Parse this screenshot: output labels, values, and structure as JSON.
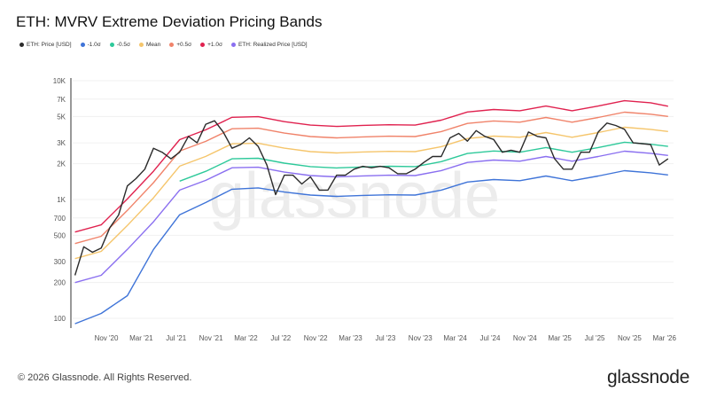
{
  "title": "ETH: MVRV Extreme Deviation Pricing Bands",
  "footer": "© 2026 Glassnode. All Rights Reserved.",
  "logo": "glassnode",
  "watermark": "glassnode",
  "chart_data": {
    "type": "line",
    "title": "ETH: MVRV Extreme Deviation Pricing Bands",
    "y_scale": "log",
    "ylim": [
      90,
      10000
    ],
    "grid": true,
    "legend_placement": "top-left",
    "y_ticks": [
      "100",
      "200",
      "300",
      "500",
      "700",
      "1K",
      "2K",
      "3K",
      "5K",
      "7K",
      "10K"
    ],
    "y_tick_values": [
      100,
      200,
      300,
      500,
      700,
      1000,
      2000,
      3000,
      5000,
      7000,
      10000
    ],
    "x_ticks": [
      "Nov '20",
      "Mar '21",
      "Jul '21",
      "Nov '21",
      "Mar '22",
      "Jul '22",
      "Nov '22",
      "Mar '23",
      "Jul '23",
      "Nov '23",
      "Mar '24",
      "Jul '24",
      "Nov '24",
      "Mar '25",
      "Jul '25",
      "Nov '25",
      "Mar '26"
    ],
    "x_tick_dates": [
      "2020-11",
      "2021-03",
      "2021-07",
      "2021-11",
      "2022-03",
      "2022-07",
      "2022-11",
      "2023-03",
      "2023-07",
      "2023-11",
      "2024-03",
      "2024-07",
      "2024-11",
      "2025-03",
      "2025-07",
      "2025-11",
      "2026-03"
    ],
    "price": {
      "name": "ETH: Price [USD]",
      "color": "#2b2b2b",
      "x": [
        "2020-07",
        "2020-08",
        "2020-09",
        "2020-10",
        "2020-11",
        "2020-12",
        "2021-01",
        "2021-02",
        "2021-03",
        "2021-04",
        "2021-05",
        "2021-06",
        "2021-07",
        "2021-08",
        "2021-09",
        "2021-10",
        "2021-11",
        "2021-12",
        "2022-01",
        "2022-02",
        "2022-03",
        "2022-04",
        "2022-05",
        "2022-06",
        "2022-07",
        "2022-08",
        "2022-09",
        "2022-10",
        "2022-11",
        "2022-12",
        "2023-01",
        "2023-02",
        "2023-03",
        "2023-04",
        "2023-05",
        "2023-06",
        "2023-07",
        "2023-08",
        "2023-09",
        "2023-10",
        "2023-11",
        "2023-12",
        "2024-01",
        "2024-02",
        "2024-03",
        "2024-04",
        "2024-05",
        "2024-06",
        "2024-07",
        "2024-08",
        "2024-09",
        "2024-10",
        "2024-11",
        "2024-12",
        "2025-01",
        "2025-02",
        "2025-03",
        "2025-04",
        "2025-05",
        "2025-06",
        "2025-07",
        "2025-08",
        "2025-09",
        "2025-10",
        "2025-11",
        "2025-12",
        "2026-01",
        "2026-02",
        "2026-03"
      ],
      "values": [
        230,
        400,
        360,
        390,
        580,
        740,
        1300,
        1500,
        1800,
        2700,
        2500,
        2200,
        2500,
        3400,
        3000,
        4300,
        4600,
        3700,
        2700,
        2900,
        3300,
        2800,
        1950,
        1100,
        1600,
        1600,
        1350,
        1550,
        1200,
        1200,
        1600,
        1600,
        1800,
        1900,
        1850,
        1900,
        1850,
        1650,
        1650,
        1800,
        2050,
        2300,
        2300,
        3300,
        3600,
        3100,
        3800,
        3400,
        3200,
        2500,
        2600,
        2500,
        3700,
        3400,
        3300,
        2200,
        1800,
        1800,
        2500,
        2500,
        3700,
        4400,
        4200,
        3900,
        3000,
        2950,
        2900,
        1950,
        2200
      ]
    },
    "bands_x": [
      "2020-07",
      "2020-10",
      "2021-01",
      "2021-04",
      "2021-07",
      "2021-10",
      "2022-01",
      "2022-04",
      "2022-07",
      "2022-10",
      "2023-01",
      "2023-04",
      "2023-07",
      "2023-10",
      "2024-01",
      "2024-04",
      "2024-07",
      "2024-10",
      "2025-01",
      "2025-04",
      "2025-07",
      "2025-10",
      "2026-01",
      "2026-03"
    ],
    "series": [
      {
        "name": "-1.0σ",
        "color": "#3f74d8",
        "values": [
          90,
          110,
          155,
          380,
          744,
          943,
          1221,
          1253,
          1156,
          1089,
          1062,
          1082,
          1096,
          1089,
          1199,
          1404,
          1473,
          1439,
          1576,
          1439,
          1576,
          1747,
          1678,
          1610
        ]
      },
      {
        "name": "-0.5σ",
        "color": "#2ec99a",
        "values": [
          null,
          null,
          null,
          null,
          1428,
          1726,
          2202,
          2225,
          2023,
          1892,
          1845,
          1880,
          1904,
          1892,
          2083,
          2440,
          2559,
          2499,
          2737,
          2499,
          2737,
          3035,
          2916,
          2797
        ]
      },
      {
        "name": "Mean",
        "color": "#f5c56b",
        "values": [
          318,
          366,
          604,
          1034,
          1908,
          2306,
          2942,
          2973,
          2703,
          2528,
          2465,
          2512,
          2544,
          2528,
          2783,
          3260,
          3419,
          3339,
          3657,
          3339,
          3657,
          4055,
          3896,
          3737
        ]
      },
      {
        "name": "+0.5σ",
        "color": "#f0836a",
        "values": [
          426,
          490,
          809,
          1385,
          2556,
          3089,
          3941,
          3983,
          3621,
          3387,
          3302,
          3365,
          3408,
          3387,
          3728,
          4367,
          4580,
          4473,
          4899,
          4473,
          4899,
          5432,
          5219,
          5006
        ]
      },
      {
        "name": "+1.0σ",
        "color": "#e0224f",
        "values": [
          532,
          612,
          1011,
          1729,
          3192,
          3857,
          4921,
          4974,
          4522,
          4229,
          4123,
          4203,
          4256,
          4229,
          4655,
          5453,
          5719,
          5586,
          6118,
          5586,
          6118,
          6783,
          6517,
          6100
        ]
      },
      {
        "name": "ETH: Realized Price [USD]",
        "color": "#8a6ff0",
        "values": [
          200,
          230,
          380,
          650,
          1200,
          1450,
          1850,
          1870,
          1700,
          1590,
          1550,
          1580,
          1600,
          1590,
          1750,
          2050,
          2150,
          2100,
          2300,
          2100,
          2300,
          2550,
          2450,
          2350
        ]
      }
    ]
  }
}
